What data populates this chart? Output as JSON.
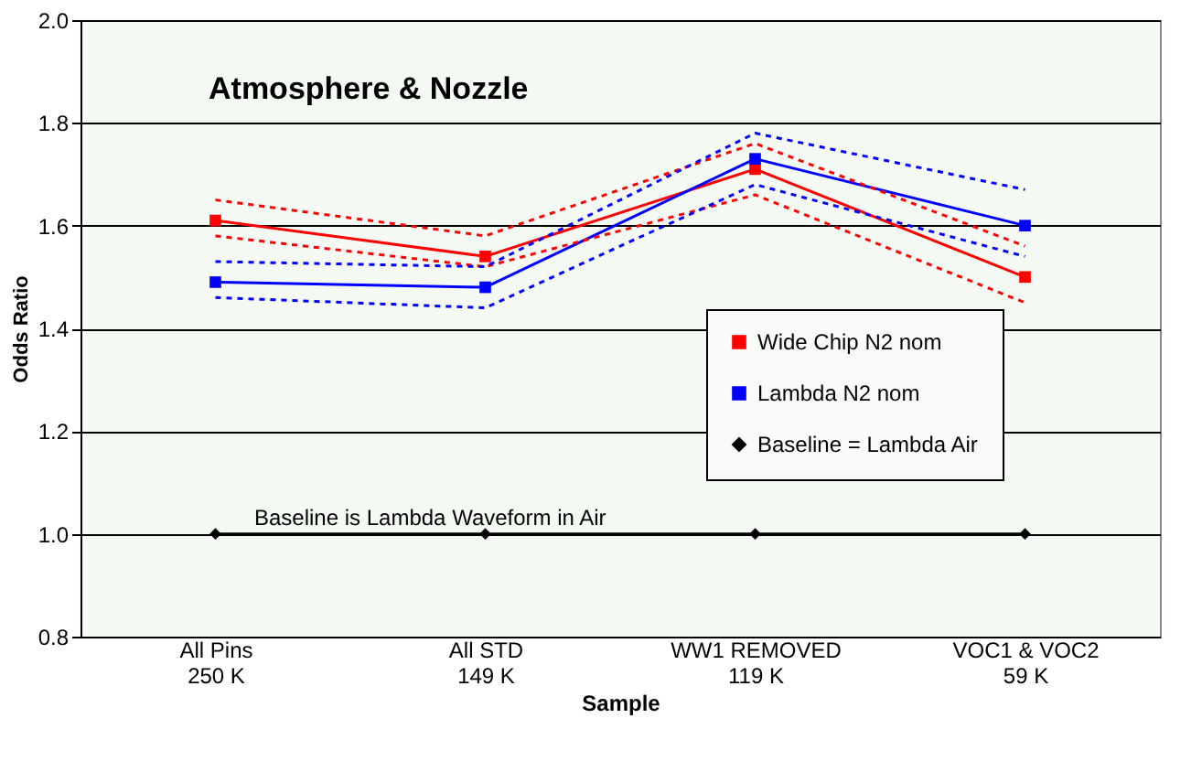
{
  "chart_data": {
    "type": "line",
    "title": "Atmosphere & Nozzle",
    "xlabel": "Sample",
    "ylabel": "Odds Ratio",
    "categories": [
      "All Pins\n250 K",
      "All STD\n149 K",
      "WW1 REMOVED\n119 K",
      "VOC1 & VOC2\n59 K"
    ],
    "series": [
      {
        "name": "Wide Chip N2 nom",
        "color": "#ff0000",
        "marker": "square",
        "line_style": "solid",
        "values": [
          1.61,
          1.54,
          1.71,
          1.5
        ]
      },
      {
        "name": "Lambda N2 nom",
        "color": "#0000ff",
        "marker": "square",
        "line_style": "solid",
        "values": [
          1.49,
          1.48,
          1.73,
          1.6
        ]
      },
      {
        "name": "Baseline = Lambda Air",
        "color": "#000000",
        "marker": "diamond",
        "line_style": "solid",
        "values": [
          1.0,
          1.0,
          1.0,
          1.0
        ]
      },
      {
        "color": "#ff0000",
        "marker": "none",
        "line_style": "dashed",
        "values": [
          1.65,
          1.58,
          1.76,
          1.56
        ]
      },
      {
        "color": "#ff0000",
        "marker": "none",
        "line_style": "dashed",
        "values": [
          1.58,
          1.52,
          1.66,
          1.45
        ]
      },
      {
        "color": "#0000ff",
        "marker": "none",
        "line_style": "dashed",
        "values": [
          1.53,
          1.52,
          1.78,
          1.67
        ]
      },
      {
        "color": "#0000ff",
        "marker": "none",
        "line_style": "dashed",
        "values": [
          1.46,
          1.44,
          1.68,
          1.54
        ]
      }
    ],
    "ylim": [
      0.8,
      2
    ],
    "yticks": [
      0.8,
      {
        "value": 1,
        "label": "1.0"
      },
      1.2,
      1.4,
      1.6,
      1.8,
      {
        "value": 2,
        "label": "2.0"
      }
    ],
    "grid": "y",
    "legend": "bottom right",
    "annotations": [
      "Baseline is Lambda Waveform in Air"
    ]
  }
}
